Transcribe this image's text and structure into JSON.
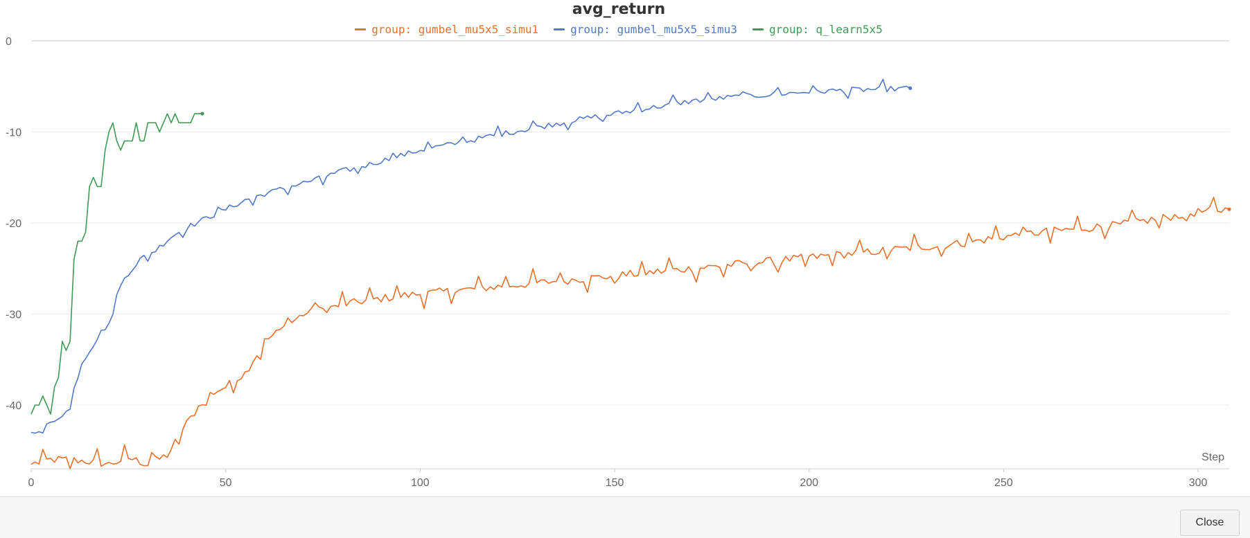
{
  "chart_data": {
    "type": "line",
    "title": "avg_return",
    "xlabel": "Step",
    "ylabel": "",
    "xlim": [
      0,
      308
    ],
    "ylim": [
      -47,
      0
    ],
    "xticks": [
      0,
      50,
      100,
      150,
      200,
      250,
      300
    ],
    "yticks": [
      0,
      -10,
      -20,
      -30,
      -40
    ],
    "grid": true,
    "legend_position": "top-center",
    "series": [
      {
        "name": "group: gumbel_mu5x5_simu1",
        "color": "#e8702a",
        "anchors": [
          [
            0,
            -46.5
          ],
          [
            5,
            -46
          ],
          [
            10,
            -46
          ],
          [
            15,
            -46.2
          ],
          [
            20,
            -46.5
          ],
          [
            25,
            -45.8
          ],
          [
            30,
            -46.5
          ],
          [
            35,
            -45.5
          ],
          [
            40,
            -42
          ],
          [
            45,
            -39
          ],
          [
            50,
            -38
          ],
          [
            55,
            -36.5
          ],
          [
            60,
            -33
          ],
          [
            65,
            -31.5
          ],
          [
            70,
            -30
          ],
          [
            75,
            -29.5
          ],
          [
            80,
            -29
          ],
          [
            85,
            -28.6
          ],
          [
            90,
            -28.3
          ],
          [
            95,
            -28
          ],
          [
            100,
            -27.8
          ],
          [
            110,
            -27.4
          ],
          [
            120,
            -27
          ],
          [
            130,
            -26.6
          ],
          [
            140,
            -26.2
          ],
          [
            150,
            -25.8
          ],
          [
            160,
            -25.4
          ],
          [
            170,
            -25
          ],
          [
            180,
            -24.6
          ],
          [
            190,
            -24.2
          ],
          [
            200,
            -23.8
          ],
          [
            210,
            -23.4
          ],
          [
            220,
            -23
          ],
          [
            230,
            -22.6
          ],
          [
            240,
            -22.2
          ],
          [
            250,
            -21.5
          ],
          [
            260,
            -21
          ],
          [
            270,
            -20.6
          ],
          [
            280,
            -20.2
          ],
          [
            290,
            -19.5
          ],
          [
            300,
            -18.8
          ],
          [
            308,
            -18.5
          ]
        ],
        "noise": 0.45,
        "spike_every": 7,
        "spike": 1.2
      },
      {
        "name": "group: gumbel_mu5x5_simu3",
        "color": "#5179c9",
        "anchors": [
          [
            0,
            -43
          ],
          [
            4,
            -42.3
          ],
          [
            8,
            -41
          ],
          [
            10,
            -40.5
          ],
          [
            12,
            -36
          ],
          [
            15,
            -34
          ],
          [
            18,
            -32
          ],
          [
            20,
            -31
          ],
          [
            22,
            -28
          ],
          [
            24,
            -26
          ],
          [
            28,
            -24
          ],
          [
            32,
            -23
          ],
          [
            36,
            -21.5
          ],
          [
            40,
            -20.5
          ],
          [
            45,
            -19.5
          ],
          [
            50,
            -18.5
          ],
          [
            55,
            -17.5
          ],
          [
            60,
            -16.8
          ],
          [
            65,
            -16.2
          ],
          [
            70,
            -15.6
          ],
          [
            75,
            -15
          ],
          [
            80,
            -14.3
          ],
          [
            85,
            -13.8
          ],
          [
            90,
            -13.2
          ],
          [
            95,
            -12.6
          ],
          [
            100,
            -12
          ],
          [
            110,
            -11.2
          ],
          [
            120,
            -10.3
          ],
          [
            130,
            -9.5
          ],
          [
            140,
            -8.7
          ],
          [
            150,
            -8
          ],
          [
            160,
            -7.3
          ],
          [
            170,
            -6.6
          ],
          [
            180,
            -6.2
          ],
          [
            190,
            -5.9
          ],
          [
            200,
            -5.6
          ],
          [
            210,
            -5.4
          ],
          [
            220,
            -5.3
          ],
          [
            226,
            -5.2
          ]
        ],
        "noise": 0.3,
        "spike_every": 9,
        "spike": 0.8
      },
      {
        "name": "group: q_learn5x5",
        "color": "#3f9a55",
        "points": [
          [
            0,
            -41
          ],
          [
            1,
            -40
          ],
          [
            2,
            -40
          ],
          [
            3,
            -39
          ],
          [
            4,
            -40
          ],
          [
            5,
            -41
          ],
          [
            6,
            -38
          ],
          [
            7,
            -37
          ],
          [
            8,
            -33
          ],
          [
            9,
            -34
          ],
          [
            10,
            -33
          ],
          [
            11,
            -24
          ],
          [
            12,
            -22
          ],
          [
            13,
            -22
          ],
          [
            14,
            -21
          ],
          [
            15,
            -16
          ],
          [
            16,
            -15
          ],
          [
            17,
            -16
          ],
          [
            18,
            -16
          ],
          [
            19,
            -12
          ],
          [
            20,
            -10
          ],
          [
            21,
            -9
          ],
          [
            22,
            -11
          ],
          [
            23,
            -12
          ],
          [
            24,
            -11
          ],
          [
            25,
            -11
          ],
          [
            26,
            -11
          ],
          [
            27,
            -9
          ],
          [
            28,
            -11
          ],
          [
            29,
            -11
          ],
          [
            30,
            -9
          ],
          [
            31,
            -9
          ],
          [
            32,
            -9
          ],
          [
            33,
            -10
          ],
          [
            34,
            -9
          ],
          [
            35,
            -8
          ],
          [
            36,
            -9
          ],
          [
            37,
            -8
          ],
          [
            38,
            -9
          ],
          [
            39,
            -9
          ],
          [
            40,
            -9
          ],
          [
            41,
            -9
          ],
          [
            42,
            -8
          ],
          [
            43,
            -8
          ],
          [
            44,
            -8
          ]
        ]
      }
    ]
  },
  "footer": {
    "close_label": "Close"
  }
}
